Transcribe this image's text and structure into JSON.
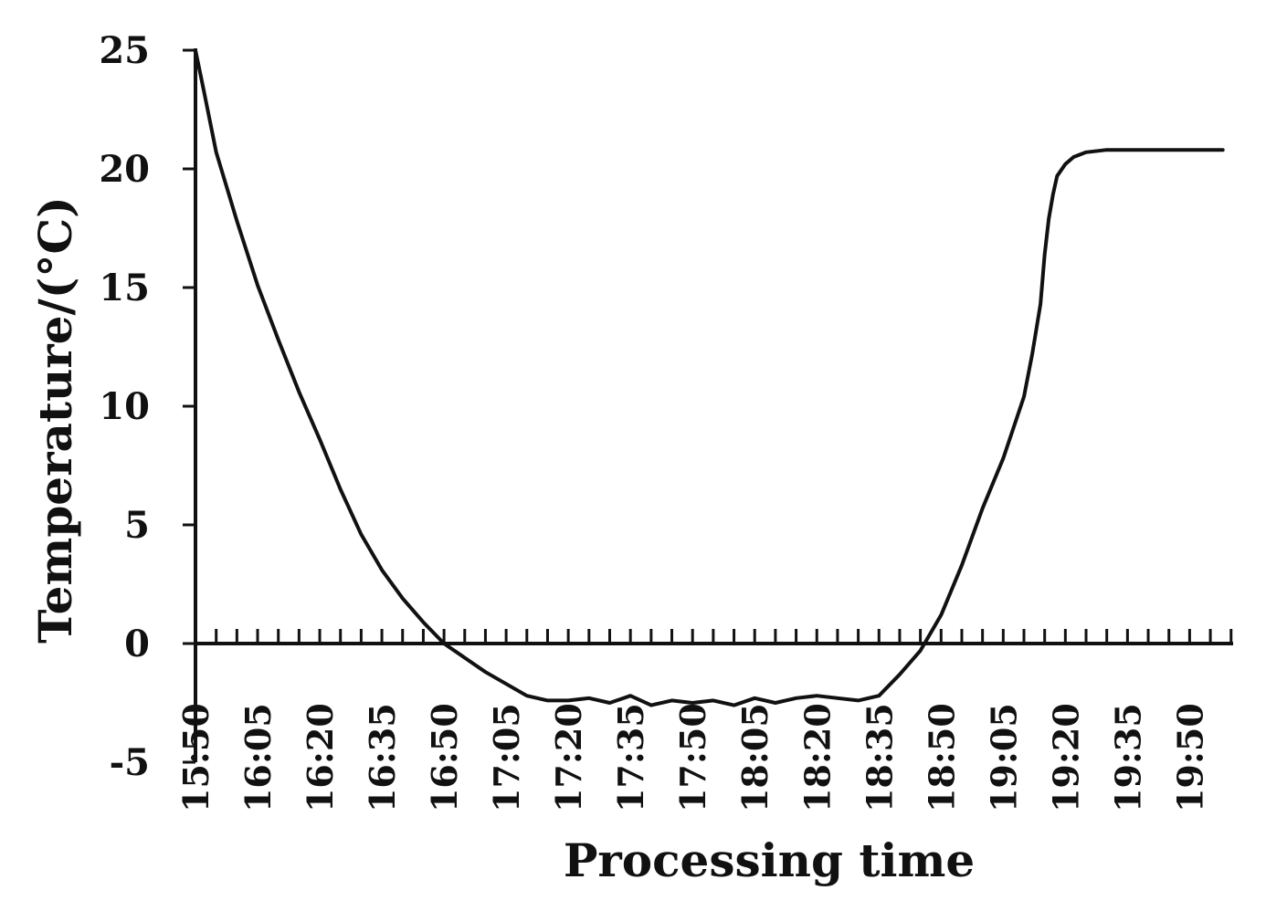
{
  "chart_data": {
    "type": "line",
    "title": "",
    "xlabel": "Processing time",
    "ylabel": "Temperature/(°C)",
    "ylim": [
      -5,
      25
    ],
    "yticks": [
      25,
      20,
      15,
      10,
      5,
      0,
      -5
    ],
    "xlim": [
      "15:50",
      "19:58"
    ],
    "x_tick_labels": [
      "15:50",
      "16:05",
      "16:20",
      "16:35",
      "16:50",
      "17:05",
      "17:20",
      "17:35",
      "17:50",
      "18:05",
      "18:20",
      "18:35",
      "18:50",
      "19:05",
      "19:20",
      "19:35",
      "19:50"
    ],
    "grid": false,
    "legend": "none",
    "line_color": "#111111",
    "series": [
      {
        "x": [
          "15:50",
          "15:52",
          "15:55",
          "16:00",
          "16:05",
          "16:10",
          "16:15",
          "16:20",
          "16:25",
          "16:30",
          "16:35",
          "16:40",
          "16:45",
          "16:50",
          "16:55",
          "17:00",
          "17:05",
          "17:10",
          "17:15",
          "17:20",
          "17:25",
          "17:30",
          "17:35",
          "17:40",
          "17:45",
          "17:50",
          "17:55",
          "18:00",
          "18:05",
          "18:10",
          "18:15",
          "18:20",
          "18:25",
          "18:30",
          "18:35",
          "18:40",
          "18:45",
          "18:50",
          "18:55",
          "19:00",
          "19:05",
          "19:10",
          "19:12",
          "19:14",
          "19:15",
          "19:16",
          "19:17",
          "19:18",
          "19:20",
          "19:22",
          "19:25",
          "19:30",
          "19:35",
          "19:40",
          "19:45",
          "19:50",
          "19:55",
          "19:58"
        ],
        "values": [
          25.0,
          23.3,
          20.7,
          17.8,
          15.1,
          12.8,
          10.6,
          8.6,
          6.5,
          4.6,
          3.1,
          1.9,
          0.9,
          0.0,
          -0.6,
          -1.2,
          -1.7,
          -2.2,
          -2.4,
          -2.4,
          -2.3,
          -2.5,
          -2.2,
          -2.6,
          -2.4,
          -2.5,
          -2.4,
          -2.6,
          -2.3,
          -2.5,
          -2.3,
          -2.2,
          -2.3,
          -2.4,
          -2.2,
          -1.3,
          -0.3,
          1.2,
          3.3,
          5.7,
          7.8,
          10.4,
          12.2,
          14.3,
          16.4,
          17.9,
          18.9,
          19.7,
          20.2,
          20.5,
          20.7,
          20.8,
          20.8,
          20.8,
          20.8,
          20.8,
          20.8,
          20.8
        ]
      }
    ]
  }
}
